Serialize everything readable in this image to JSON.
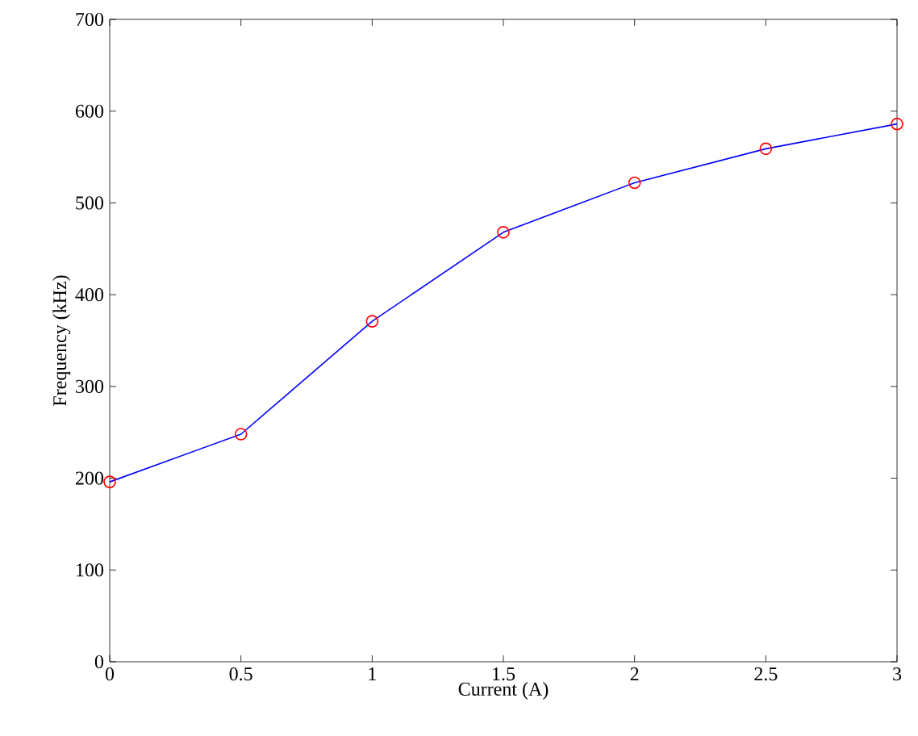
{
  "chart_data": {
    "type": "line",
    "xlabel": "Current (A)",
    "ylabel": "Frequency (kHz)",
    "x": [
      0,
      0.5,
      1,
      1.5,
      2,
      2.5,
      3
    ],
    "series": [
      {
        "color": "#0000ff",
        "values": [
          196,
          248,
          371,
          468,
          522,
          559,
          586
        ]
      }
    ],
    "xlim": [
      0,
      3
    ],
    "ylim": [
      0,
      700
    ],
    "xticks": [
      0,
      0.5,
      1,
      1.5,
      2,
      2.5,
      3
    ],
    "yticks": [
      0,
      100,
      200,
      300,
      400,
      500,
      600,
      700
    ],
    "marker": "circle",
    "line_style": "solid",
    "grid": false
  }
}
